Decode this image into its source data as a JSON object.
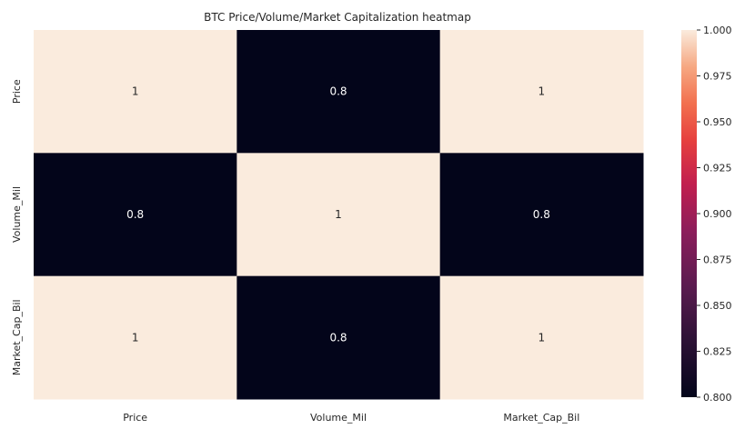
{
  "chart_data": {
    "type": "heatmap",
    "title": "BTC Price/Volume/Market Capitalization heatmap",
    "x_labels": [
      "Price",
      "Volume_Mil",
      "Market_Cap_Bil"
    ],
    "y_labels": [
      "Price",
      "Volume_Mil",
      "Market_Cap_Bil"
    ],
    "values": [
      [
        1.0,
        0.8,
        1.0
      ],
      [
        0.8,
        1.0,
        0.8
      ],
      [
        1.0,
        0.8,
        1.0
      ]
    ],
    "annotations": [
      [
        "1",
        "0.8",
        "1"
      ],
      [
        "0.8",
        "1",
        "0.8"
      ],
      [
        "1",
        "0.8",
        "1"
      ]
    ],
    "colorbar": {
      "vmin": 0.8,
      "vmax": 1.0,
      "ticks": [
        "0.800",
        "0.825",
        "0.850",
        "0.875",
        "0.900",
        "0.925",
        "0.950",
        "0.975",
        "1.000"
      ],
      "colormap": "rocket",
      "low_color": "#03051a",
      "high_color": "#faebdd"
    },
    "xlabel": "",
    "ylabel": "",
    "grid": false
  }
}
